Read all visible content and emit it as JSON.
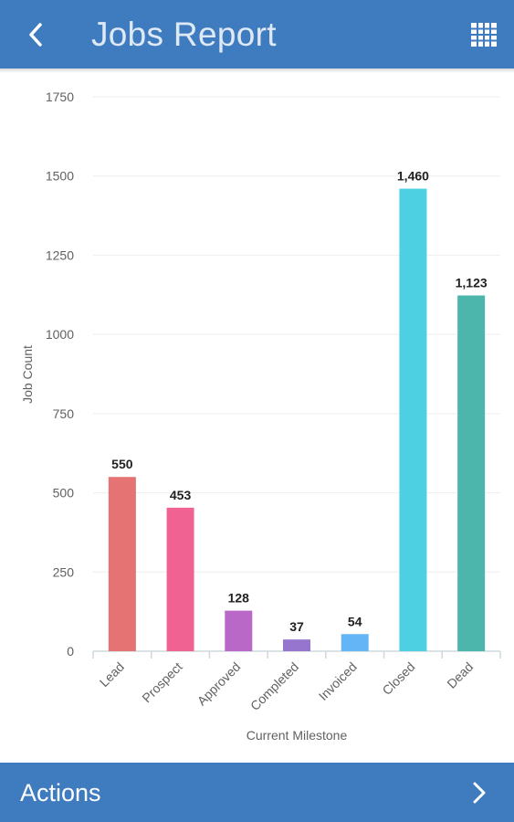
{
  "app": {
    "title": "Jobs Report",
    "colors": {
      "bar_background": "#3f7cbf",
      "title_text": "#dfe9f5"
    },
    "icons": {
      "back": "back-arrow-icon",
      "grid": "grid-icon",
      "actions": "chevron-right-icon"
    }
  },
  "footer": {
    "actions_label": "Actions"
  },
  "chart_data": {
    "type": "bar",
    "categories": [
      "Lead",
      "Prospect",
      "Approved",
      "Completed",
      "Invoiced",
      "Closed",
      "Dead"
    ],
    "values": [
      550,
      453,
      128,
      37,
      54,
      1460,
      1123
    ],
    "value_labels": [
      "550",
      "453",
      "128",
      "37",
      "54",
      "1,460",
      "1,123"
    ],
    "colors": [
      "#e57373",
      "#f06292",
      "#ba68c8",
      "#9575cd",
      "#64b5f6",
      "#4dd0e1",
      "#4db6ac"
    ],
    "xlabel": "Current Milestone",
    "ylabel": "Job Count",
    "ylim": [
      0,
      1750
    ],
    "yticks": [
      0,
      250,
      500,
      750,
      1000,
      1250,
      1500,
      1750
    ],
    "grid": true,
    "legend": "none"
  }
}
